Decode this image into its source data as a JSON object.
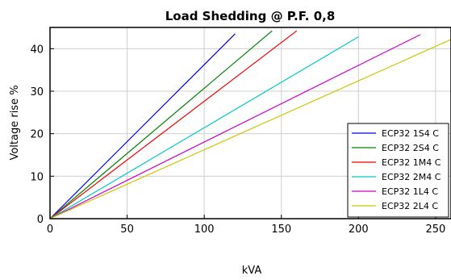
{
  "chart_data": {
    "type": "line",
    "title": "Load Shedding @ P.F. 0,8",
    "xlabel": "kVA",
    "ylabel": "Voltage rise %",
    "xlim": [
      0,
      260
    ],
    "ylim": [
      0,
      45
    ],
    "xticks": [
      0,
      50,
      100,
      150,
      200,
      250
    ],
    "yticks": [
      0,
      10,
      20,
      30,
      40
    ],
    "grid": true,
    "legend_position": "bottom-right",
    "series": [
      {
        "name": "ECP32 1S4 C",
        "color": "#0000ee",
        "x": [
          0,
          120
        ],
        "y": [
          0,
          43.5
        ]
      },
      {
        "name": "ECP32 2S4 C",
        "color": "#008000",
        "x": [
          0,
          144
        ],
        "y": [
          0,
          44.2
        ]
      },
      {
        "name": "ECP32 1M4 C",
        "color": "#ee0000",
        "x": [
          0,
          160
        ],
        "y": [
          0,
          44.2
        ]
      },
      {
        "name": "ECP32 2M4 C",
        "color": "#00c8c8",
        "x": [
          0,
          200
        ],
        "y": [
          0,
          42.8
        ]
      },
      {
        "name": "ECP32 1L4 C",
        "color": "#cc00cc",
        "x": [
          0,
          240
        ],
        "y": [
          0,
          43.3
        ]
      },
      {
        "name": "ECP32 2L4 C",
        "color": "#c8c800",
        "x": [
          0,
          262
        ],
        "y": [
          0,
          42.5
        ]
      }
    ]
  }
}
